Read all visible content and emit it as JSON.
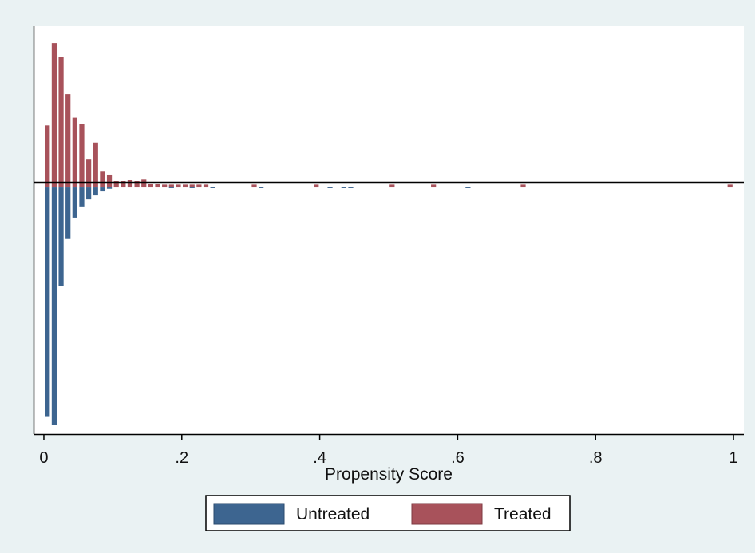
{
  "chart_data": {
    "type": "bar",
    "title": "",
    "xlabel": "Propensity Score",
    "ylabel": "",
    "xlim": [
      -0.015,
      1.015
    ],
    "ticks": [
      {
        "value": 0,
        "label": "0"
      },
      {
        "value": 0.2,
        "label": ".2"
      },
      {
        "value": 0.4,
        "label": ".4"
      },
      {
        "value": 0.6,
        "label": ".6"
      },
      {
        "value": 0.8,
        "label": ".8"
      },
      {
        "value": 1,
        "label": "1"
      }
    ],
    "ylim": [
      -0.925,
      0.6
    ],
    "grid": false,
    "legend_position": "bottom",
    "series": [
      {
        "name": "Treated",
        "color": "#a8525b",
        "direction": "up",
        "bins": [
          {
            "x": 0.005,
            "h": 0.229
          },
          {
            "x": 0.015,
            "h": 0.537
          },
          {
            "x": 0.025,
            "h": 0.484
          },
          {
            "x": 0.035,
            "h": 0.346
          },
          {
            "x": 0.045,
            "h": 0.258
          },
          {
            "x": 0.055,
            "h": 0.234
          },
          {
            "x": 0.065,
            "h": 0.104
          },
          {
            "x": 0.075,
            "h": 0.165
          },
          {
            "x": 0.085,
            "h": 0.059
          },
          {
            "x": 0.095,
            "h": 0.045
          },
          {
            "x": 0.105,
            "h": 0.021
          },
          {
            "x": 0.115,
            "h": 0.021
          },
          {
            "x": 0.125,
            "h": 0.027
          },
          {
            "x": 0.135,
            "h": 0.021
          },
          {
            "x": 0.145,
            "h": 0.029
          },
          {
            "x": 0.155,
            "h": 0.011
          },
          {
            "x": 0.165,
            "h": 0.011
          },
          {
            "x": 0.175,
            "h": 0.008
          },
          {
            "x": 0.185,
            "h": 0.008
          },
          {
            "x": 0.195,
            "h": 0.008
          },
          {
            "x": 0.205,
            "h": 0.008
          },
          {
            "x": 0.215,
            "h": 0.008
          },
          {
            "x": 0.225,
            "h": 0.008
          },
          {
            "x": 0.235,
            "h": 0.008
          },
          {
            "x": 0.305,
            "h": 0.008
          },
          {
            "x": 0.395,
            "h": 0.008
          },
          {
            "x": 0.505,
            "h": 0.008
          },
          {
            "x": 0.565,
            "h": 0.008
          },
          {
            "x": 0.695,
            "h": 0.008
          },
          {
            "x": 0.995,
            "h": 0.008
          }
        ]
      },
      {
        "name": "Untreated",
        "color": "#3d6590",
        "direction": "down",
        "bins": [
          {
            "x": 0.005,
            "h": 0.858
          },
          {
            "x": 0.015,
            "h": 0.89
          },
          {
            "x": 0.025,
            "h": 0.371
          },
          {
            "x": 0.035,
            "h": 0.193
          },
          {
            "x": 0.045,
            "h": 0.116
          },
          {
            "x": 0.055,
            "h": 0.074
          },
          {
            "x": 0.065,
            "h": 0.048
          },
          {
            "x": 0.075,
            "h": 0.03
          },
          {
            "x": 0.085,
            "h": 0.015
          },
          {
            "x": 0.095,
            "h": 0.008
          },
          {
            "x": 0.185,
            "h": 0.004
          },
          {
            "x": 0.215,
            "h": 0.004
          },
          {
            "x": 0.245,
            "h": 0.004
          },
          {
            "x": 0.315,
            "h": 0.004
          },
          {
            "x": 0.415,
            "h": 0.004
          },
          {
            "x": 0.435,
            "h": 0.004
          },
          {
            "x": 0.445,
            "h": 0.004
          },
          {
            "x": 0.615,
            "h": 0.004
          }
        ]
      }
    ]
  },
  "legend": {
    "items": [
      {
        "label": "Untreated",
        "color": "#3d6590"
      },
      {
        "label": "Treated",
        "color": "#a8525b"
      }
    ]
  }
}
